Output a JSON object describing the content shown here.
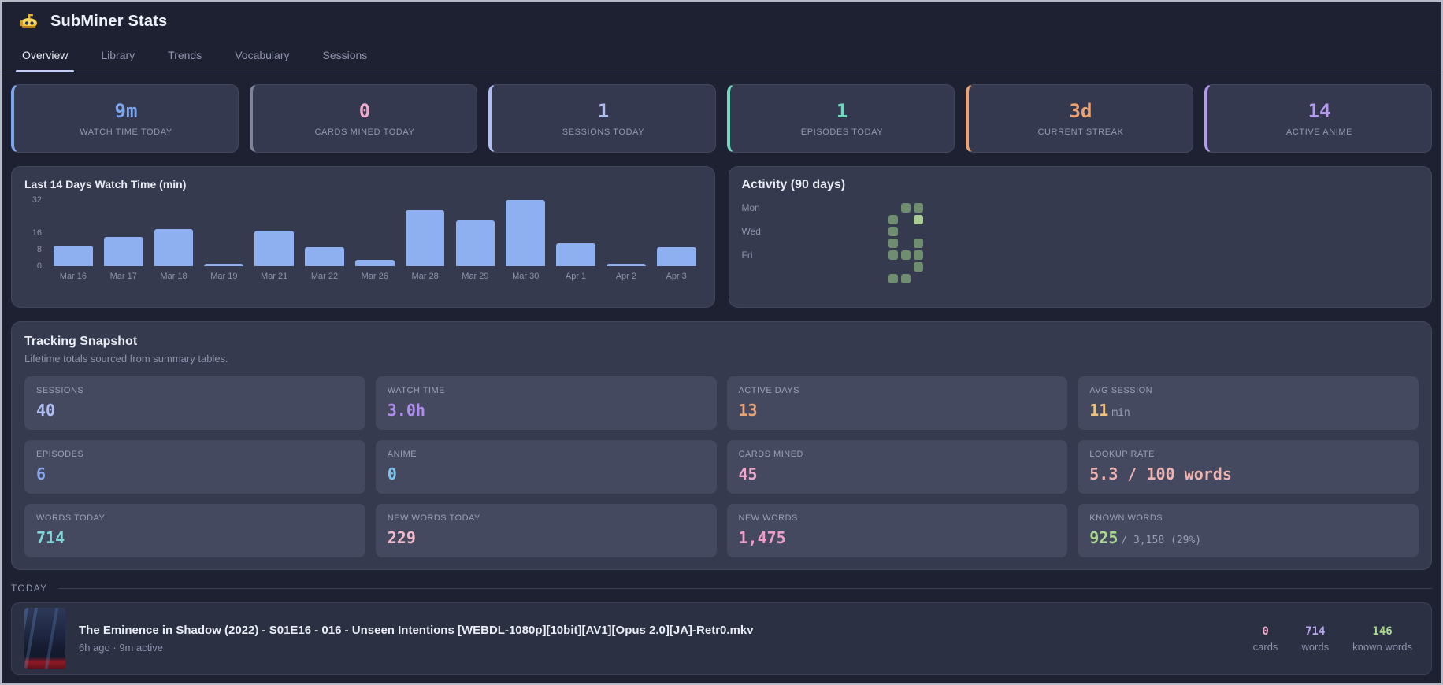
{
  "app": {
    "title": "SubMiner Stats"
  },
  "tabs": [
    {
      "label": "Overview",
      "active": true
    },
    {
      "label": "Library",
      "active": false
    },
    {
      "label": "Trends",
      "active": false
    },
    {
      "label": "Vocabulary",
      "active": false
    },
    {
      "label": "Sessions",
      "active": false
    }
  ],
  "stat_cards": [
    {
      "value": "9m",
      "label": "WATCH TIME TODAY",
      "color": "#7ea6ec",
      "border": "#7ea6ec"
    },
    {
      "value": "0",
      "label": "CARDS MINED TODAY",
      "color": "#efa9cd",
      "border": "#7e849c"
    },
    {
      "value": "1",
      "label": "SESSIONS TODAY",
      "color": "#aebdf2",
      "border": "#aebdf2"
    },
    {
      "value": "1",
      "label": "EPISODES TODAY",
      "color": "#74d6bd",
      "border": "#74d6bd"
    },
    {
      "value": "3d",
      "label": "CURRENT STREAK",
      "color": "#eda271",
      "border": "#eda271"
    },
    {
      "value": "14",
      "label": "ACTIVE ANIME",
      "color": "#b59aee",
      "border": "#b59aee"
    }
  ],
  "chart_data": {
    "type": "bar",
    "title": "Last 14 Days Watch Time (min)",
    "categories": [
      "Mar 16",
      "Mar 17",
      "Mar 18",
      "Mar 19",
      "Mar 21",
      "Mar 22",
      "Mar 26",
      "Mar 28",
      "Mar 29",
      "Mar 30",
      "Apr 1",
      "Apr 2",
      "Apr 3"
    ],
    "values": [
      10,
      14,
      18,
      1,
      17,
      9,
      3,
      27,
      22,
      32,
      11,
      1,
      9
    ],
    "xlabel": "",
    "ylabel": "",
    "ylim": [
      0,
      32
    ],
    "yticks": [
      32,
      16,
      8,
      0
    ],
    "bar_color": "#8fb0f0",
    "grid": false,
    "legend": false
  },
  "activity": {
    "title": "Activity (90 days)",
    "rows": 7,
    "cols": 13,
    "day_labels": {
      "0": "Mon",
      "2": "Wed",
      "4": "Fri"
    },
    "cell_color": "#6f8e6f",
    "cell_color_bright": "#a9cc92",
    "cells": [
      {
        "row": 0,
        "col": 9
      },
      {
        "row": 0,
        "col": 10
      },
      {
        "row": 1,
        "col": 8
      },
      {
        "row": 1,
        "col": 10,
        "bright": true
      },
      {
        "row": 2,
        "col": 8
      },
      {
        "row": 3,
        "col": 8
      },
      {
        "row": 3,
        "col": 10
      },
      {
        "row": 4,
        "col": 8
      },
      {
        "row": 4,
        "col": 9
      },
      {
        "row": 4,
        "col": 10
      },
      {
        "row": 5,
        "col": 10
      },
      {
        "row": 6,
        "col": 8
      },
      {
        "row": 6,
        "col": 9
      }
    ]
  },
  "snapshot": {
    "title": "Tracking Snapshot",
    "subtitle": "Lifetime totals sourced from summary tables.",
    "cells": [
      {
        "label": "SESSIONS",
        "value": "40",
        "suffix": "",
        "color": "#aebdf2"
      },
      {
        "label": "WATCH TIME",
        "value": "3.0h",
        "suffix": "",
        "color": "#b18cf0"
      },
      {
        "label": "ACTIVE DAYS",
        "value": "13",
        "suffix": "",
        "color": "#eda271"
      },
      {
        "label": "AVG SESSION",
        "value": "11",
        "suffix": "min",
        "color": "#eec27a"
      },
      {
        "label": "EPISODES",
        "value": "6",
        "suffix": "",
        "color": "#89a8ec"
      },
      {
        "label": "ANIME",
        "value": "0",
        "suffix": "",
        "color": "#7cc4f0"
      },
      {
        "label": "CARDS MINED",
        "value": "45",
        "suffix": "",
        "color": "#f0a9ce"
      },
      {
        "label": "LOOKUP RATE",
        "value": "5.3 / 100 words",
        "suffix": "",
        "color": "#efb4b0"
      },
      {
        "label": "WORDS TODAY",
        "value": "714",
        "suffix": "",
        "color": "#7fd8d8"
      },
      {
        "label": "NEW WORDS TODAY",
        "value": "229",
        "suffix": "",
        "color": "#f0b8c8"
      },
      {
        "label": "NEW WORDS",
        "value": "1,475",
        "suffix": "",
        "color": "#ef9cc8"
      },
      {
        "label": "KNOWN WORDS",
        "value": "925",
        "suffix": "/ 3,158 (29%)",
        "color": "#a8d88f"
      }
    ]
  },
  "today": {
    "section_label": "TODAY",
    "items": [
      {
        "title": "The Eminence in Shadow (2022) - S01E16 - 016 - Unseen Intentions [WEBDL-1080p][10bit][AV1][Opus 2.0][JA]-Retr0.mkv",
        "meta": "6h ago · 9m active",
        "stats": [
          {
            "value": "0",
            "label": "cards",
            "color": "#efa9cd"
          },
          {
            "value": "714",
            "label": "words",
            "color": "#b8a8f0"
          },
          {
            "value": "146",
            "label": "known words",
            "color": "#a8d88f"
          }
        ]
      }
    ]
  }
}
